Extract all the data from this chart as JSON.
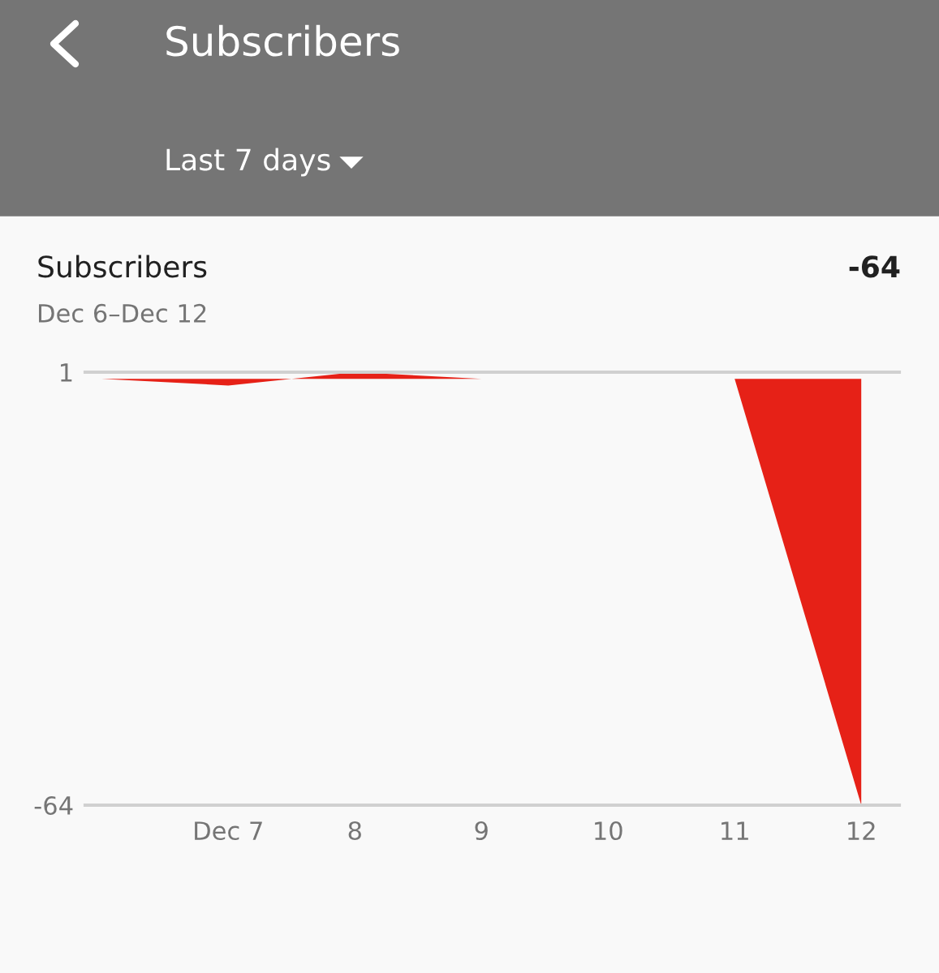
{
  "chart_data": {
    "type": "area",
    "title": "Subscribers",
    "subtitle": "Last 7 days",
    "annotations": [
      "Subscribers",
      "-64",
      "Dec 6–Dec 12"
    ],
    "x": [
      6,
      7,
      8,
      9,
      10,
      11,
      12
    ],
    "series": [
      {
        "color": "#e62117",
        "values": [
          0,
          -1,
          1,
          0,
          0,
          0,
          -64
        ]
      }
    ],
    "xlim": [
      5.87,
      12.3
    ],
    "xticks": [
      {
        "value": 7,
        "label": "Dec 7"
      },
      8,
      9,
      10,
      11,
      12
    ],
    "ylim": [
      -64,
      1
    ],
    "yticks": [
      1,
      -64
    ],
    "grid": false,
    "legend": false
  }
}
